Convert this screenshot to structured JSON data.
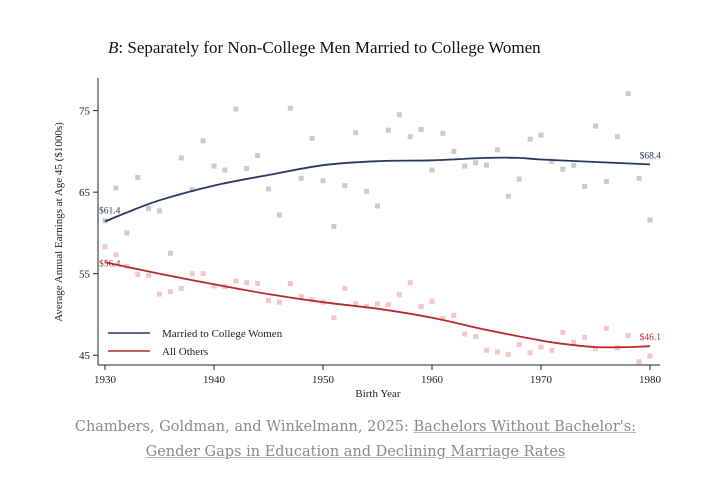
{
  "chart_data": {
    "type": "scatter",
    "title_prefix": "B",
    "title_rest": ": Separately for Non-College Men Married to College Women",
    "xlabel": "Birth Year",
    "ylabel": "Average Annual Earnings at Age 45 ($1000s)",
    "xlim": [
      1930,
      1980
    ],
    "ylim": [
      43.8,
      79
    ],
    "x_ticks": [
      1930,
      1940,
      1950,
      1960,
      1970,
      1980
    ],
    "y_ticks": [
      45,
      55,
      65,
      75
    ],
    "grid": false,
    "legend_position": "bottom-left",
    "series": [
      {
        "name": "Married to College Women",
        "color": "#2c3566",
        "marker_color": "#c9c9d3",
        "start_label": "$61.4",
        "end_label": "$68.4",
        "points": [
          [
            1930,
            61.5
          ],
          [
            1931,
            65.5
          ],
          [
            1932,
            60.0
          ],
          [
            1933,
            66.8
          ],
          [
            1934,
            63.0
          ],
          [
            1935,
            62.7
          ],
          [
            1936,
            57.5
          ],
          [
            1937,
            69.2
          ],
          [
            1938,
            65.3
          ],
          [
            1939,
            71.3
          ],
          [
            1940,
            68.2
          ],
          [
            1941,
            67.7
          ],
          [
            1942,
            75.2
          ],
          [
            1943,
            67.9
          ],
          [
            1944,
            69.5
          ],
          [
            1945,
            65.4
          ],
          [
            1946,
            62.2
          ],
          [
            1947,
            75.3
          ],
          [
            1948,
            66.7
          ],
          [
            1949,
            71.6
          ],
          [
            1950,
            66.4
          ],
          [
            1951,
            60.8
          ],
          [
            1952,
            65.8
          ],
          [
            1953,
            72.3
          ],
          [
            1954,
            65.1
          ],
          [
            1955,
            63.3
          ],
          [
            1956,
            72.6
          ],
          [
            1957,
            74.5
          ],
          [
            1958,
            71.8
          ],
          [
            1959,
            72.7
          ],
          [
            1960,
            67.7
          ],
          [
            1961,
            72.2
          ],
          [
            1962,
            70.0
          ],
          [
            1963,
            68.2
          ],
          [
            1964,
            68.6
          ],
          [
            1965,
            68.3
          ],
          [
            1966,
            70.2
          ],
          [
            1967,
            64.5
          ],
          [
            1968,
            66.6
          ],
          [
            1969,
            71.5
          ],
          [
            1970,
            72.0
          ],
          [
            1971,
            68.8
          ],
          [
            1972,
            67.8
          ],
          [
            1973,
            68.3
          ],
          [
            1974,
            65.7
          ],
          [
            1975,
            73.1
          ],
          [
            1976,
            66.3
          ],
          [
            1977,
            71.8
          ],
          [
            1978,
            77.1
          ],
          [
            1979,
            66.7
          ],
          [
            1980,
            61.6
          ]
        ],
        "fit": [
          [
            1930,
            61.4
          ],
          [
            1932,
            62.5
          ],
          [
            1935,
            64.0
          ],
          [
            1940,
            65.8
          ],
          [
            1945,
            67.1
          ],
          [
            1950,
            68.3
          ],
          [
            1955,
            68.8
          ],
          [
            1960,
            68.9
          ],
          [
            1965,
            69.2
          ],
          [
            1968,
            69.2
          ],
          [
            1970,
            69.0
          ],
          [
            1975,
            68.7
          ],
          [
            1980,
            68.4
          ]
        ]
      },
      {
        "name": "All Others",
        "color": "#b52a2f",
        "marker_color": "#f4c6c8",
        "start_label": "$56.4",
        "end_label": "$46.1",
        "points": [
          [
            1930,
            58.3
          ],
          [
            1931,
            57.3
          ],
          [
            1932,
            55.9
          ],
          [
            1933,
            54.9
          ],
          [
            1934,
            54.8
          ],
          [
            1935,
            52.5
          ],
          [
            1936,
            52.8
          ],
          [
            1937,
            53.2
          ],
          [
            1938,
            55.0
          ],
          [
            1939,
            55.0
          ],
          [
            1940,
            53.5
          ],
          [
            1941,
            53.4
          ],
          [
            1942,
            54.1
          ],
          [
            1943,
            53.9
          ],
          [
            1944,
            53.8
          ],
          [
            1945,
            51.7
          ],
          [
            1946,
            51.5
          ],
          [
            1947,
            53.8
          ],
          [
            1948,
            52.2
          ],
          [
            1949,
            51.8
          ],
          [
            1950,
            51.5
          ],
          [
            1951,
            49.6
          ],
          [
            1952,
            53.2
          ],
          [
            1953,
            51.3
          ],
          [
            1954,
            51.0
          ],
          [
            1955,
            51.3
          ],
          [
            1956,
            51.2
          ],
          [
            1957,
            52.4
          ],
          [
            1958,
            53.9
          ],
          [
            1959,
            51.0
          ],
          [
            1960,
            51.6
          ],
          [
            1961,
            49.5
          ],
          [
            1962,
            49.9
          ],
          [
            1963,
            47.6
          ],
          [
            1964,
            47.3
          ],
          [
            1965,
            45.6
          ],
          [
            1966,
            45.4
          ],
          [
            1967,
            45.1
          ],
          [
            1968,
            46.3
          ],
          [
            1969,
            45.3
          ],
          [
            1970,
            46.0
          ],
          [
            1971,
            45.6
          ],
          [
            1972,
            47.8
          ],
          [
            1973,
            46.6
          ],
          [
            1974,
            47.2
          ],
          [
            1975,
            45.8
          ],
          [
            1976,
            48.3
          ],
          [
            1977,
            45.9
          ],
          [
            1978,
            47.4
          ],
          [
            1979,
            44.2
          ],
          [
            1980,
            44.9
          ]
        ],
        "fit": [
          [
            1930,
            56.4
          ],
          [
            1935,
            55.0
          ],
          [
            1940,
            53.7
          ],
          [
            1945,
            52.5
          ],
          [
            1950,
            51.5
          ],
          [
            1955,
            50.7
          ],
          [
            1960,
            49.6
          ],
          [
            1965,
            48.1
          ],
          [
            1970,
            46.8
          ],
          [
            1972,
            46.4
          ],
          [
            1975,
            46.0
          ],
          [
            1978,
            46.0
          ],
          [
            1980,
            46.1
          ]
        ]
      }
    ]
  },
  "caption": {
    "prefix": "Chambers, Goldman, and Winkelmann, 2025: ",
    "link_line1": "Bachelors Without Bachelor's:",
    "link_line2": "Gender Gaps in Education and Declining Marriage Rates"
  }
}
